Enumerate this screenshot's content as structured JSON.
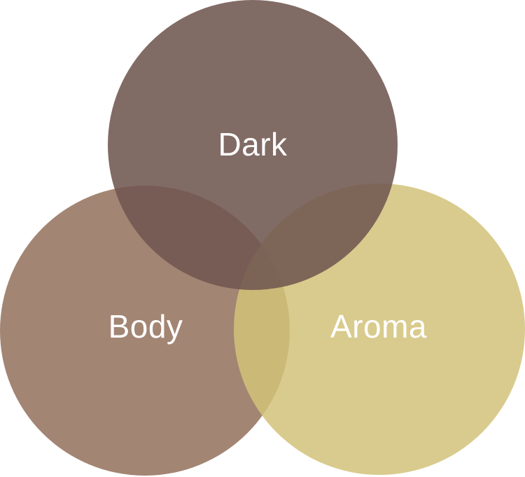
{
  "diagram": {
    "type": "venn",
    "sets": [
      {
        "id": "body",
        "label": "Body",
        "color": "#8f6a55"
      },
      {
        "id": "aroma",
        "label": "Aroma",
        "color": "#d2c279"
      },
      {
        "id": "dark",
        "label": "Dark",
        "color": "#705650"
      }
    ]
  }
}
